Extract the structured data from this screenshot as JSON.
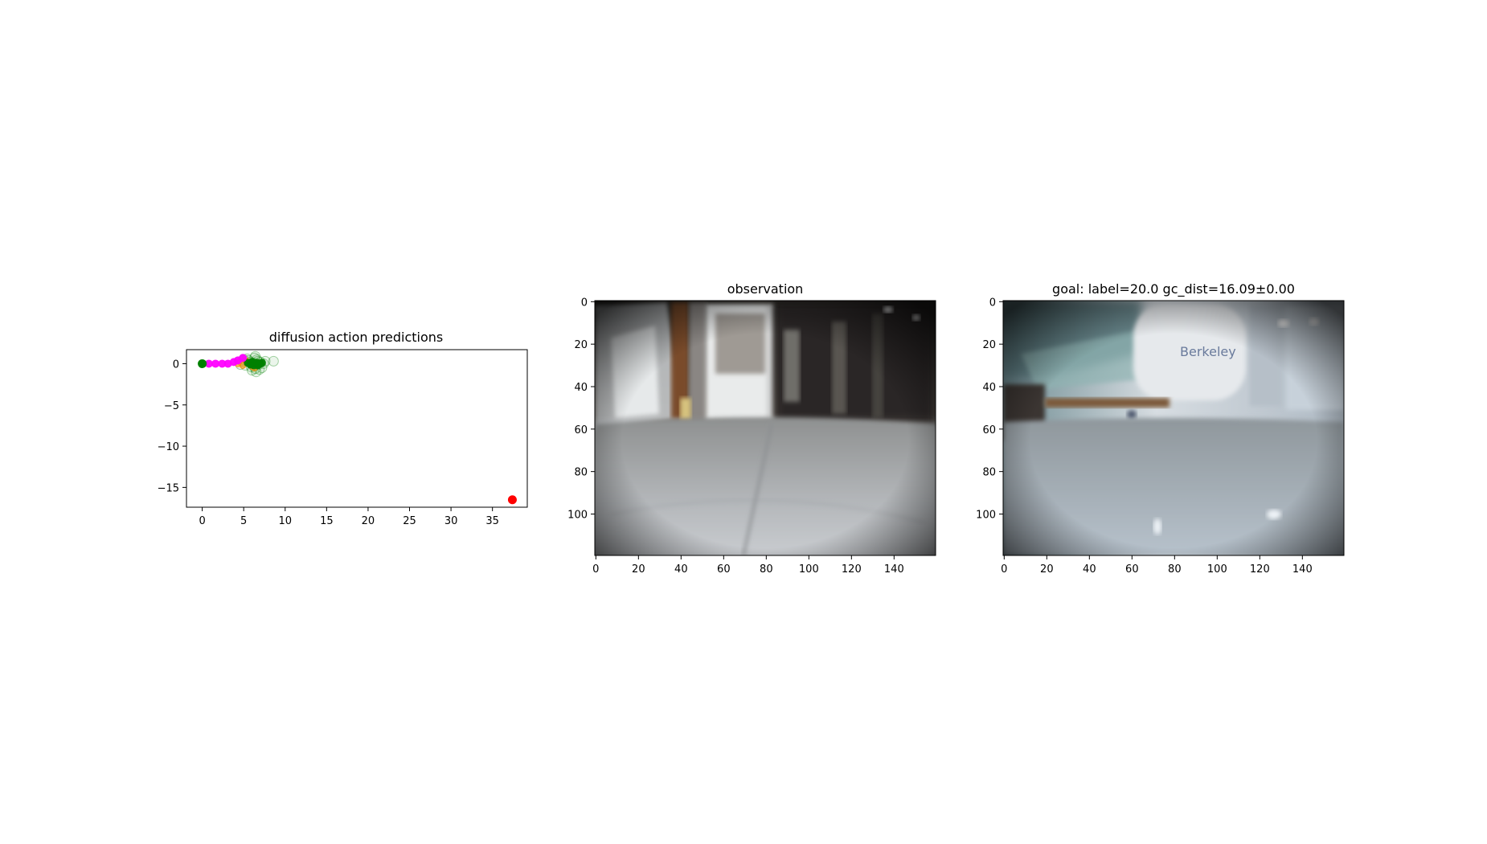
{
  "chart_data": [
    {
      "type": "scatter",
      "title": "diffusion action predictions",
      "xlabel": "",
      "ylabel": "",
      "xlim": [
        -1.9,
        39.2
      ],
      "ylim": [
        -17.4,
        1.7
      ],
      "xticks": [
        0,
        5,
        10,
        15,
        20,
        25,
        30,
        35
      ],
      "yticks": [
        0,
        -5,
        -10,
        -15
      ],
      "grid": false,
      "series": [
        {
          "marker": "faint-circle-cloud",
          "color": "#008000",
          "points": [
            [
              4.8,
              0.3
            ],
            [
              5.2,
              -0.2
            ],
            [
              5.6,
              0.4
            ],
            [
              5.9,
              -0.4
            ],
            [
              6.1,
              0.1
            ],
            [
              6.4,
              -0.6
            ],
            [
              6.6,
              0.5
            ],
            [
              6.8,
              -0.1
            ],
            [
              7.0,
              0.2
            ],
            [
              7.2,
              -0.5
            ],
            [
              6.0,
              -0.8
            ],
            [
              5.4,
              0.6
            ],
            [
              6.3,
              0.7
            ],
            [
              6.9,
              -0.7
            ],
            [
              7.4,
              0.0
            ],
            [
              5.8,
              0.2
            ],
            [
              6.2,
              -0.3
            ],
            [
              6.5,
              -1.0
            ],
            [
              6.7,
              0.3
            ],
            [
              7.6,
              0.3
            ],
            [
              8.6,
              0.3
            ],
            [
              4.6,
              -0.1
            ],
            [
              5.0,
              0.5
            ],
            [
              6.4,
              0.9
            ]
          ]
        },
        {
          "marker": "small-circle",
          "color": "#ff8c00",
          "points": [
            [
              4.3,
              0.0
            ],
            [
              4.9,
              -0.2
            ],
            [
              5.5,
              0.2
            ],
            [
              6.0,
              -0.3
            ],
            [
              6.6,
              0.1
            ],
            [
              5.2,
              0.4
            ],
            [
              6.3,
              -0.5
            ]
          ]
        },
        {
          "marker": "circle",
          "color": "#008000",
          "points": [
            [
              5.5,
              0.1
            ],
            [
              5.8,
              -0.1
            ],
            [
              6.0,
              0.2
            ],
            [
              6.2,
              -0.2
            ],
            [
              6.4,
              0.0
            ],
            [
              6.6,
              0.1
            ],
            [
              6.8,
              -0.1
            ],
            [
              7.0,
              0.0
            ],
            [
              5.9,
              0.0
            ],
            [
              6.3,
              0.1
            ],
            [
              6.7,
              -0.2
            ],
            [
              7.2,
              0.1
            ]
          ]
        },
        {
          "marker": "circle",
          "color": "#ff00ff",
          "points": [
            [
              0.8,
              0.0
            ],
            [
              1.6,
              0.0
            ],
            [
              2.4,
              0.0
            ],
            [
              3.1,
              0.0
            ],
            [
              3.8,
              0.2
            ],
            [
              4.3,
              0.4
            ],
            [
              4.9,
              0.7
            ]
          ]
        },
        {
          "marker": "start",
          "color": "#008000",
          "points": [
            [
              0.0,
              0.0
            ]
          ]
        },
        {
          "marker": "goal",
          "color": "#ff0000",
          "points": [
            [
              37.4,
              -16.5
            ]
          ]
        }
      ]
    },
    {
      "type": "image",
      "title": "observation",
      "xticks": [
        0,
        20,
        40,
        60,
        80,
        100,
        120,
        140
      ],
      "yticks": [
        0,
        20,
        40,
        60,
        80,
        100
      ],
      "xlim": [
        -0.5,
        159.5
      ],
      "ylim": [
        119.5,
        -0.5
      ]
    },
    {
      "type": "image",
      "title": "goal: label=20.0 gc_dist=16.09±0.00",
      "xticks": [
        0,
        20,
        40,
        60,
        80,
        100,
        120,
        140
      ],
      "yticks": [
        0,
        20,
        40,
        60,
        80,
        100
      ],
      "xlim": [
        -0.5,
        159.5
      ],
      "ylim": [
        119.5,
        -0.5
      ]
    }
  ]
}
